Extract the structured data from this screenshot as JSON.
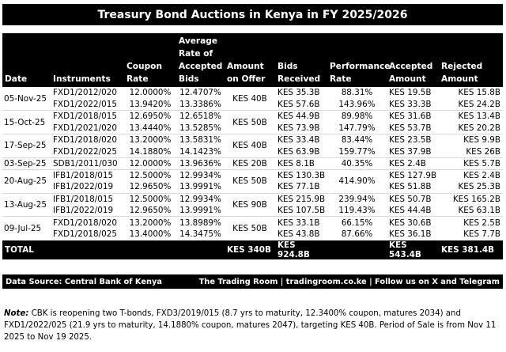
{
  "title": "Treasury Bond Auctions in Kenya in FY 2025/2026",
  "headers": {
    "date": "Date",
    "instruments": "Instruments",
    "coupon_rate": "Coupon Rate",
    "avg_rate": "Average Rate of Accepted Bids",
    "amount_on_offer": "Amount on Offer",
    "bids_received": "Bids Received",
    "performance_rate": "Performance Rate",
    "accepted_amount": "Accepted Amount",
    "rejected_amount": "Rejected Amount"
  },
  "auctions": [
    {
      "date": "05-Nov-25",
      "amount_on_offer": "KES 40B",
      "rows": [
        {
          "instrument": "FXD1/2012/020",
          "coupon": "12.0000%",
          "avg_rate": "12.4707%",
          "bids": "KES 35.3B",
          "performance": "88.31%",
          "accepted": "KES 19.5B",
          "rejected": "KES 15.8B"
        },
        {
          "instrument": "FXD1/2022/015",
          "coupon": "13.9420%",
          "avg_rate": "13.3386%",
          "bids": "KES 57.6B",
          "performance": "143.96%",
          "accepted": "KES 33.3B",
          "rejected": "KES 24.2B"
        }
      ]
    },
    {
      "date": "15-Oct-25",
      "amount_on_offer": "KES 50B",
      "rows": [
        {
          "instrument": "FXD1/2018/015",
          "coupon": "12.6950%",
          "avg_rate": "12.6518%",
          "bids": "KES 44.9B",
          "performance": "89.98%",
          "accepted": "KES 31.6B",
          "rejected": "KES 13.4B"
        },
        {
          "instrument": "FXD1/2021/020",
          "coupon": "13.4440%",
          "avg_rate": "13.5285%",
          "bids": "KES 73.9B",
          "performance": "147.79%",
          "accepted": "KES 53.7B",
          "rejected": "KES 20.2B"
        }
      ]
    },
    {
      "date": "17-Sep-25",
      "amount_on_offer": "KES 40B",
      "rows": [
        {
          "instrument": "FXD1/2018/020",
          "coupon": "13.2000%",
          "avg_rate": "13.5831%",
          "bids": "KES 33.4B",
          "performance": "83.44%",
          "accepted": "KES 23.5B",
          "rejected": "KES 9.9B"
        },
        {
          "instrument": "FXD1/2022/025",
          "coupon": "14.1880%",
          "avg_rate": "14.1423%",
          "bids": "KES 63.9B",
          "performance": "159.77%",
          "accepted": "KES 37.9B",
          "rejected": "KES 26B"
        }
      ]
    },
    {
      "date": "03-Sep-25",
      "amount_on_offer": "KES 20B",
      "rows": [
        {
          "instrument": "SDB1/2011/030",
          "coupon": "12.0000%",
          "avg_rate": "13.9636%",
          "bids": "KES 8.1B",
          "performance": "40.35%",
          "accepted": "KES 2.4B",
          "rejected": "KES 5.7B"
        }
      ]
    },
    {
      "date": "20-Aug-25",
      "amount_on_offer": "KES 50B",
      "performance_merged": "414.90%",
      "rows": [
        {
          "instrument": "IFB1/2018/015",
          "coupon": "12.5000%",
          "avg_rate": "12.9934%",
          "bids": "KES 130.3B",
          "accepted": "KES 127.9B",
          "rejected": "KES 2.4B"
        },
        {
          "instrument": "IFB1/2022/019",
          "coupon": "12.9650%",
          "avg_rate": "13.9991%",
          "bids": "KES 77.1B",
          "accepted": "KES 51.8B",
          "rejected": "KES 25.3B"
        }
      ]
    },
    {
      "date": "13-Aug-25",
      "amount_on_offer": "KES 90B",
      "rows": [
        {
          "instrument": "IFB1/2018/015",
          "coupon": "12.5000%",
          "avg_rate": "12.9934%",
          "bids": "KES 215.9B",
          "performance": "239.94%",
          "accepted": "KES 50.7B",
          "rejected": "KES 165.2B"
        },
        {
          "instrument": "IFB1/2022/019",
          "coupon": "12.9650%",
          "avg_rate": "13.9991%",
          "bids": "KES 107.5B",
          "performance": "119.43%",
          "accepted": "KES 44.4B",
          "rejected": "KES 63.1B"
        }
      ]
    },
    {
      "date": "09-Jul-25",
      "amount_on_offer": "KES 50B",
      "rows": [
        {
          "instrument": "FXD1/2018/020",
          "coupon": "13.2000%",
          "avg_rate": "13.8989%",
          "bids": "KES 33.1B",
          "performance": "66.15%",
          "accepted": "KES 30.6B",
          "rejected": "KES 2.5B"
        },
        {
          "instrument": "FXD1/2018/025",
          "coupon": "13.4000%",
          "avg_rate": "14.3475%",
          "bids": "KES 43.8B",
          "performance": "87.66%",
          "accepted": "KES 36.1B",
          "rejected": "KES 7.7B"
        }
      ]
    }
  ],
  "totals": {
    "label": "TOTAL",
    "amount_on_offer": "KES 340B",
    "bids_received": "KES 924.8B",
    "accepted_amount": "KES 543.4B",
    "rejected_amount": "KES 381.4B"
  },
  "footer": {
    "source": "Data Source: Central Bank of Kenya",
    "credit": "The Trading Room | tradingroom.co.ke | Follow us on X and Telegram"
  },
  "note": {
    "label": "Note:",
    "text": "CBK is reopening two T-bonds, FXD3/2019/015 (8.7 yrs to maturity, 12.3400% coupon, matures 2034) and FXD1/2022/025 (21.9 yrs to maturity, 14.1880% coupon, matures 2047), targeting KES 40B. Period of Sale is from Nov 11 2025 to Nov 19 2025."
  }
}
